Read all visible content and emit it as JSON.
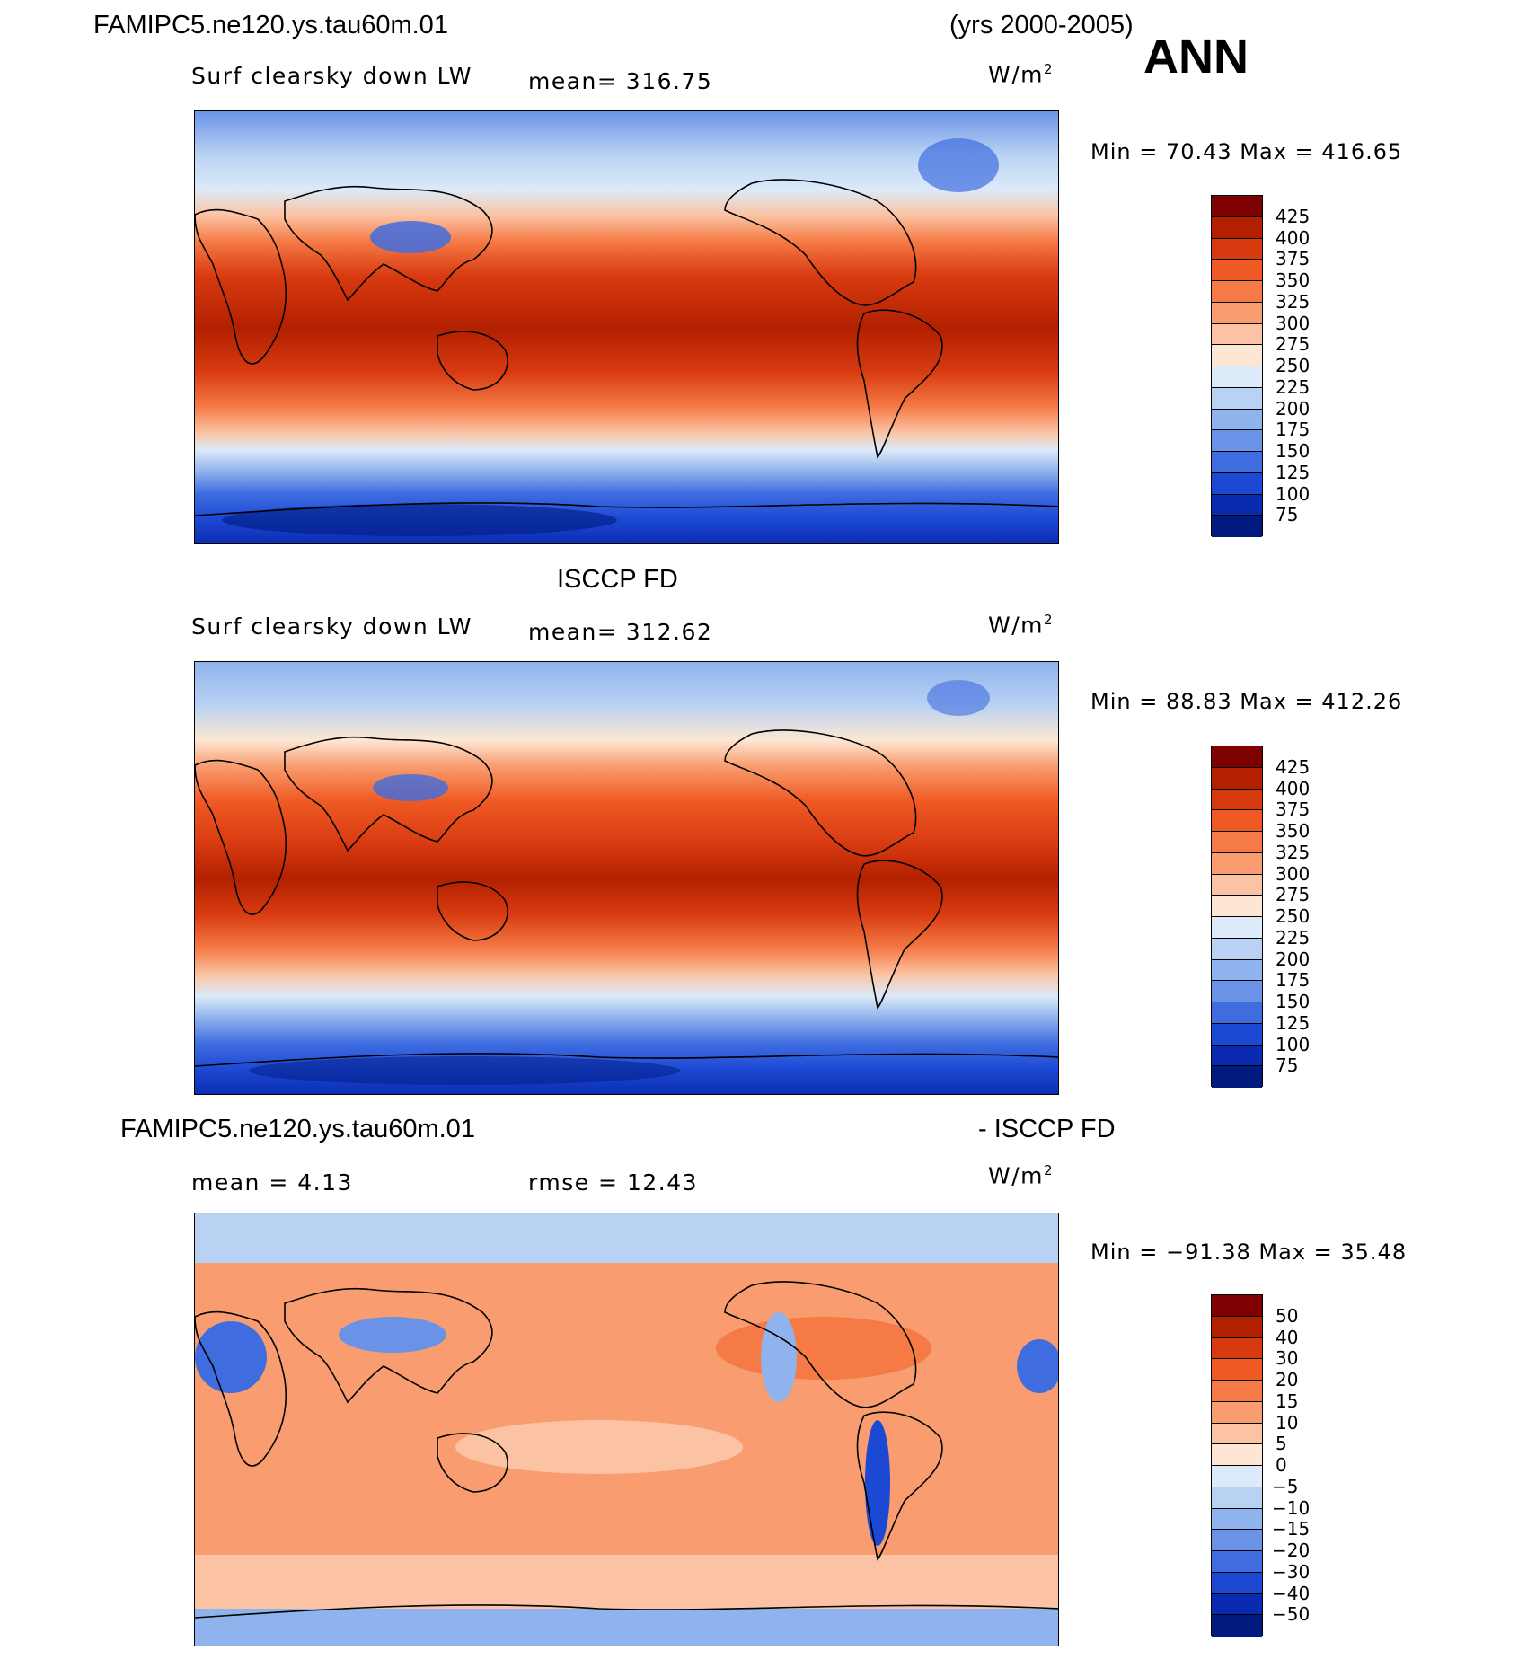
{
  "header": {
    "case_name": "FAMIPC5.ne120.ys.tau60m.01",
    "years": "(yrs 2000-2005)",
    "season": "ANN"
  },
  "panels": [
    {
      "title": "",
      "left_label": "Surf clearsky down LW",
      "center_label": "mean=  316.75",
      "units": "W/m",
      "units_sup": "2",
      "minmax": "Min =   70.43  Max = 416.65",
      "colorbar": {
        "labels": [
          "425",
          "400",
          "375",
          "350",
          "325",
          "300",
          "275",
          "250",
          "225",
          "200",
          "175",
          "150",
          "125",
          "100",
          "75"
        ],
        "colors": [
          "#7f0000",
          "#b22000",
          "#d83a10",
          "#ef5a24",
          "#f57a45",
          "#f99d70",
          "#fbc3a3",
          "#fde7d4",
          "#dceaf9",
          "#b9d2f3",
          "#8fb3ec",
          "#6a93e8",
          "#3f6de0",
          "#1c49d4",
          "#0a2bb0",
          "#001a80"
        ]
      }
    },
    {
      "title": "ISCCP FD",
      "left_label": "Surf clearsky down LW",
      "center_label": "mean=  312.62",
      "units": "W/m",
      "units_sup": "2",
      "minmax": "Min =   88.83  Max = 412.26",
      "colorbar": {
        "labels": [
          "425",
          "400",
          "375",
          "350",
          "325",
          "300",
          "275",
          "250",
          "225",
          "200",
          "175",
          "150",
          "125",
          "100",
          "75"
        ],
        "colors": [
          "#7f0000",
          "#b22000",
          "#d83a10",
          "#ef5a24",
          "#f57a45",
          "#f99d70",
          "#fbc3a3",
          "#fde7d4",
          "#dceaf9",
          "#b9d2f3",
          "#8fb3ec",
          "#6a93e8",
          "#3f6de0",
          "#1c49d4",
          "#0a2bb0",
          "#001a80"
        ]
      }
    },
    {
      "title_left": "FAMIPC5.ne120.ys.tau60m.01",
      "title_right": "- ISCCP FD",
      "left_label": "mean =    4.13",
      "center_label": "rmse =   12.43",
      "units": "W/m",
      "units_sup": "2",
      "minmax": "Min = −91.38  Max =   35.48",
      "colorbar": {
        "labels": [
          "50",
          "40",
          "30",
          "20",
          "15",
          "10",
          "5",
          "0",
          "−5",
          "−10",
          "−15",
          "−20",
          "−30",
          "−40",
          "−50"
        ],
        "colors": [
          "#7f0000",
          "#b22000",
          "#d83a10",
          "#ef5a24",
          "#f57a45",
          "#f99d70",
          "#fbc3a3",
          "#fde7d4",
          "#dceaf9",
          "#b9d2f3",
          "#8fb3ec",
          "#6a93e8",
          "#3f6de0",
          "#1c49d4",
          "#0a2bb0",
          "#001a80"
        ]
      }
    }
  ],
  "style": {
    "warm_dark": "#b22000",
    "warm_mid": "#ef5a24",
    "neutral": "#fde7d4",
    "cool_mid": "#6a93e8",
    "cool_dark": "#0a2bb0"
  }
}
